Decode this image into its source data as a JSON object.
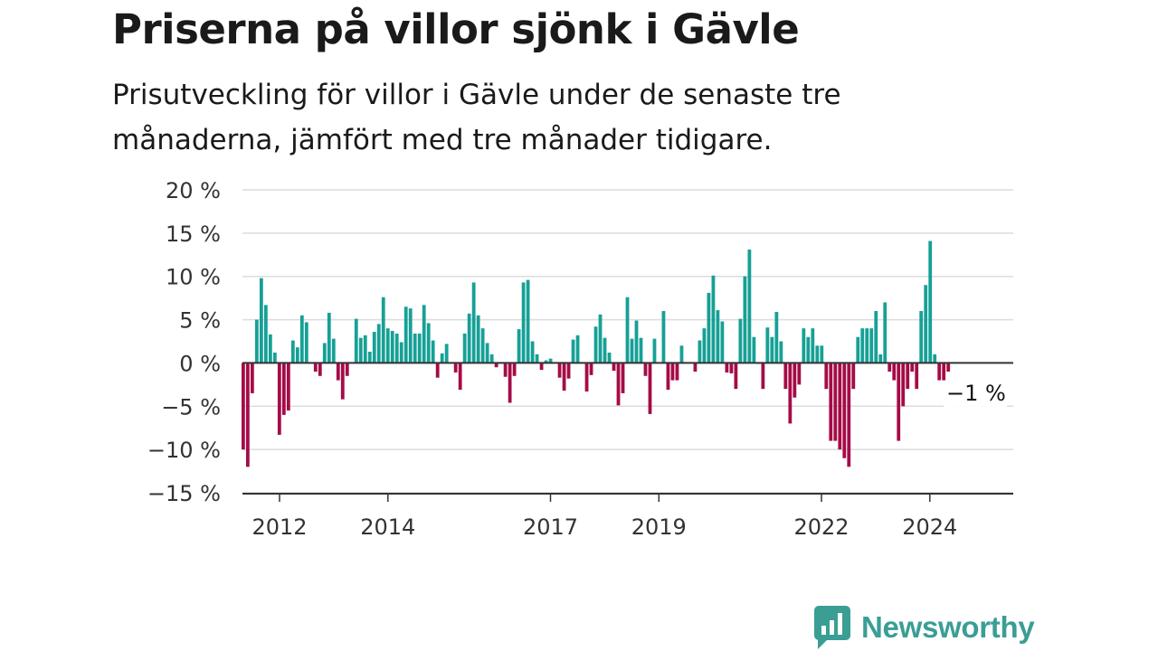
{
  "title": "Priserna på villor sjönk i Gävle",
  "subtitle": "Prisutveckling för villor i Gävle under de senaste tre månaderna, jämfört med tre månader tidigare.",
  "brand": "Newsworthy",
  "colors": {
    "positive": "#16a096",
    "negative": "#a50b47",
    "grid": "#dcdcdc",
    "axis": "#333333",
    "brand": "#3a9e95"
  },
  "chart_data": {
    "type": "bar",
    "y_tick_labels": [
      "20 %",
      "15 %",
      "10 %",
      "5 %",
      "0 %",
      "−5 %",
      "−10 %",
      "−15 %"
    ],
    "y_ticks": [
      20,
      15,
      10,
      5,
      0,
      -5,
      -10,
      -15
    ],
    "ylim": [
      -15,
      20
    ],
    "x_tick_labels": [
      "2012",
      "2014",
      "2017",
      "2019",
      "2022",
      "2024"
    ],
    "x_ticks": [
      2012.0,
      2014.0,
      2017.0,
      2019.0,
      2022.0,
      2024.0
    ],
    "x_start": 2011.33,
    "x_step": 0.0834,
    "grid": true,
    "last_value_label": "−1 %",
    "values": [
      -10,
      -12,
      -3.5,
      5,
      9.8,
      6.7,
      3.3,
      1.2,
      -8.3,
      -6,
      -5.5,
      2.6,
      1.8,
      5.5,
      4.7,
      0,
      -1,
      -1.5,
      2.3,
      5.8,
      2.8,
      -2,
      -4.2,
      -1.5,
      0,
      5.1,
      2.9,
      3.2,
      1.3,
      3.6,
      4.5,
      7.6,
      4,
      3.7,
      3.4,
      2.4,
      6.5,
      6.3,
      3.4,
      3.4,
      6.7,
      4.6,
      2.6,
      -1.7,
      1.1,
      2.2,
      0,
      -1.1,
      -3.1,
      3.4,
      5.7,
      9.3,
      5.5,
      4,
      2.3,
      1,
      -0.5,
      0,
      -1.6,
      -4.6,
      -1.5,
      3.9,
      9.3,
      9.6,
      2.5,
      1,
      -0.8,
      0.3,
      0.5,
      0,
      -1.7,
      -3.2,
      -1.8,
      2.7,
      3.2,
      0,
      -3.3,
      -1.4,
      4.2,
      5.6,
      2.9,
      1.2,
      -0.9,
      -4.9,
      -3.5,
      7.6,
      2.8,
      4.9,
      2.9,
      -1.5,
      -5.9,
      2.8,
      0,
      6,
      -3.1,
      -2,
      -2,
      2,
      0,
      0,
      -1,
      2.6,
      4,
      8.1,
      10.1,
      6.1,
      4.8,
      -1.1,
      -1.2,
      -3,
      5.1,
      10,
      13.1,
      3,
      -0.1,
      -3,
      4.1,
      3,
      5.9,
      2.5,
      -3,
      -7,
      -4,
      -2.5,
      4,
      3,
      4,
      2,
      2,
      -3,
      -9,
      -9,
      -10,
      -11,
      -12,
      -3,
      3,
      4,
      4,
      4,
      6,
      1,
      7,
      -1,
      -2,
      -9,
      -5,
      -3,
      -1,
      -3,
      6,
      9,
      14.1,
      1,
      -2,
      -2,
      -1
    ]
  }
}
